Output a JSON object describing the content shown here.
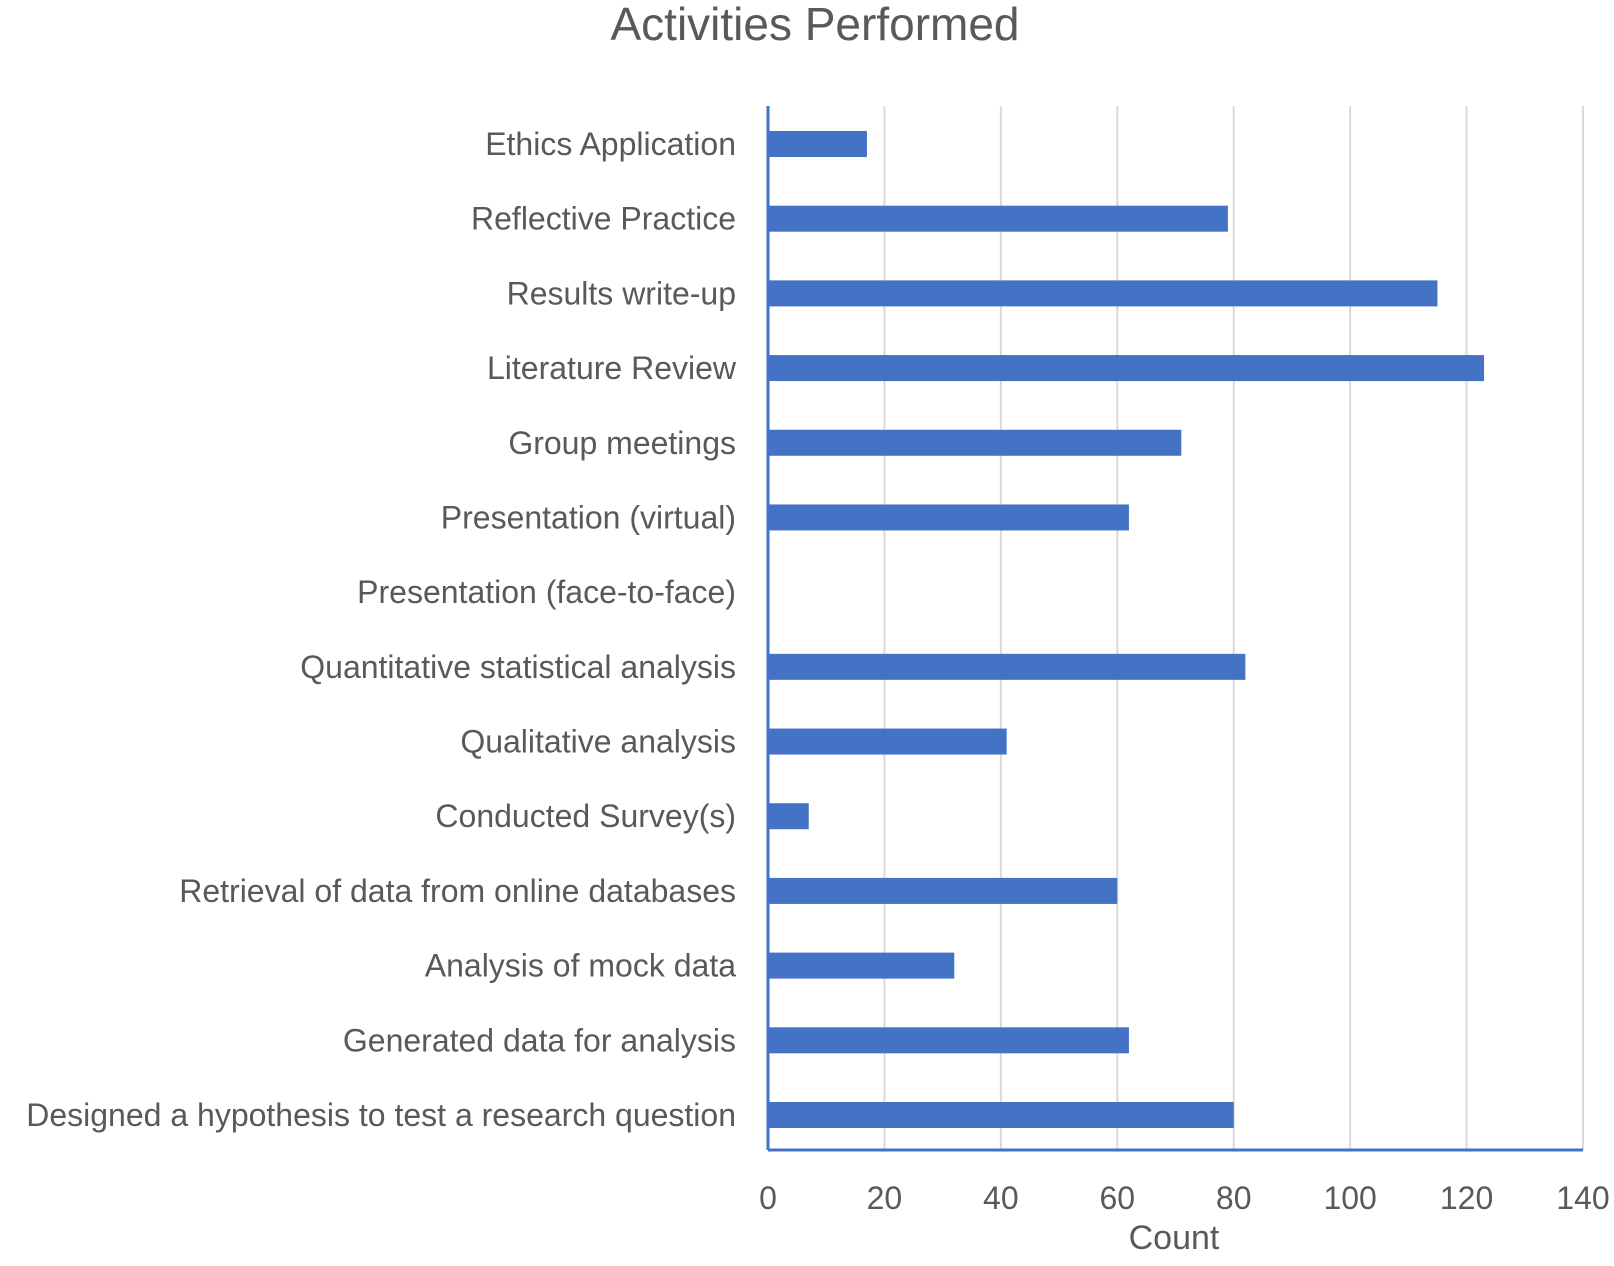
{
  "chart_data": {
    "type": "bar",
    "orientation": "horizontal",
    "title": "Activities Performed",
    "xlabel": "Count",
    "ylabel": "",
    "xlim": [
      0,
      140
    ],
    "xticks": [
      "0",
      "20",
      "40",
      "60",
      "80",
      "100",
      "120",
      "140"
    ],
    "grid": "vertical",
    "legend": "none",
    "categories": [
      "Ethics Application",
      "Reflective Practice",
      "Results write-up",
      "Literature Review",
      "Group meetings",
      "Presentation (virtual)",
      "Presentation (face-to-face)",
      "Quantitative statistical analysis",
      "Qualitative analysis",
      "Conducted Survey(s)",
      "Retrieval of data from online databases",
      "Analysis of mock data",
      "Generated data for analysis",
      "Designed a hypothesis to test a research question"
    ],
    "values": [
      17,
      79,
      115,
      123,
      71,
      62,
      0,
      82,
      41,
      7,
      60,
      32,
      62,
      80
    ],
    "colors": {
      "bar": "#4472C4",
      "grid": "#D9D9D9",
      "axis": "#4472C4",
      "text": "#595959"
    }
  }
}
